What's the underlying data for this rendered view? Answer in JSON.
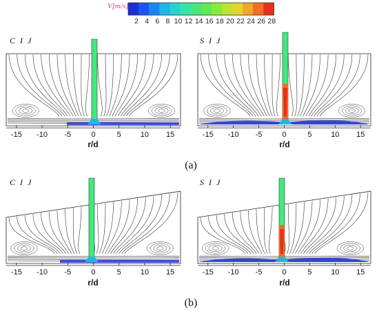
{
  "colorbar": {
    "title": "V[m/s]",
    "ticks": [
      "2",
      "4",
      "6",
      "8",
      "10",
      "12",
      "14",
      "16",
      "18",
      "20",
      "22",
      "24",
      "26",
      "28"
    ],
    "colors": [
      "#1b2fd6",
      "#1a56ee",
      "#1787f0",
      "#1fb5e8",
      "#27d3cf",
      "#35e3a8",
      "#46e77f",
      "#5cea55",
      "#8ce93c",
      "#b9e434",
      "#e2d52f",
      "#f3a529",
      "#f46d22",
      "#e5301c"
    ]
  },
  "panels": [
    {
      "label": "C I J",
      "x_ticks": [
        "-15",
        "-10",
        "-5",
        "0",
        "5",
        "10",
        "15"
      ],
      "xlabel": "r/d"
    },
    {
      "label": "S I J",
      "x_ticks": [
        "-15",
        "-10",
        "-5",
        "0",
        "5",
        "10",
        "15"
      ],
      "xlabel": "r/d"
    },
    {
      "label": "C I J",
      "x_ticks": [
        "-15",
        "-10",
        "-5",
        "0",
        "5",
        "10",
        "15"
      ],
      "xlabel": "r/d"
    },
    {
      "label": "S I J",
      "x_ticks": [
        "-15",
        "-10",
        "-5",
        "0",
        "5",
        "10",
        "15"
      ],
      "xlabel": "r/d"
    }
  ],
  "subfigures": [
    "(a)",
    "(b)"
  ]
}
